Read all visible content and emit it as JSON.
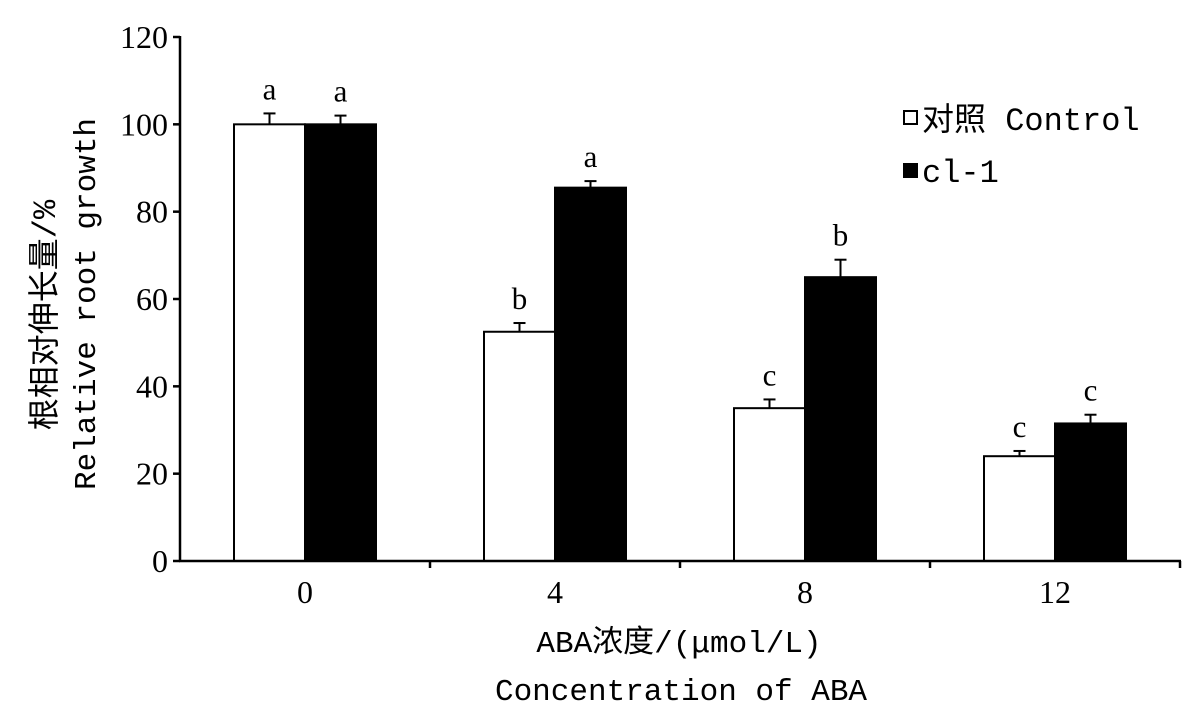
{
  "chart_data": {
    "type": "bar",
    "categories": [
      "0",
      "4",
      "8",
      "12"
    ],
    "series": [
      {
        "name": "对照 Control",
        "color": "#ffffff",
        "values": [
          100,
          52.5,
          35,
          24
        ],
        "errors": [
          2.5,
          2,
          2,
          1.2
        ],
        "letters": [
          "a",
          "b",
          "c",
          "c"
        ]
      },
      {
        "name": "cl-1",
        "color": "#000000",
        "values": [
          100,
          85.5,
          65,
          31.5
        ],
        "errors": [
          2,
          1.5,
          4,
          2
        ],
        "letters": [
          "a",
          "a",
          "b",
          "c"
        ]
      }
    ],
    "xlabel": [
      "ABA浓度/(μmol/L)",
      "Concentration of ABA"
    ],
    "ylabel": [
      "根相对伸长量/%",
      "Relative root growth"
    ],
    "ylim": [
      0,
      120
    ],
    "yticks": [
      0,
      20,
      40,
      60,
      80,
      100,
      120
    ],
    "legend": "top-right",
    "grid": false
  }
}
